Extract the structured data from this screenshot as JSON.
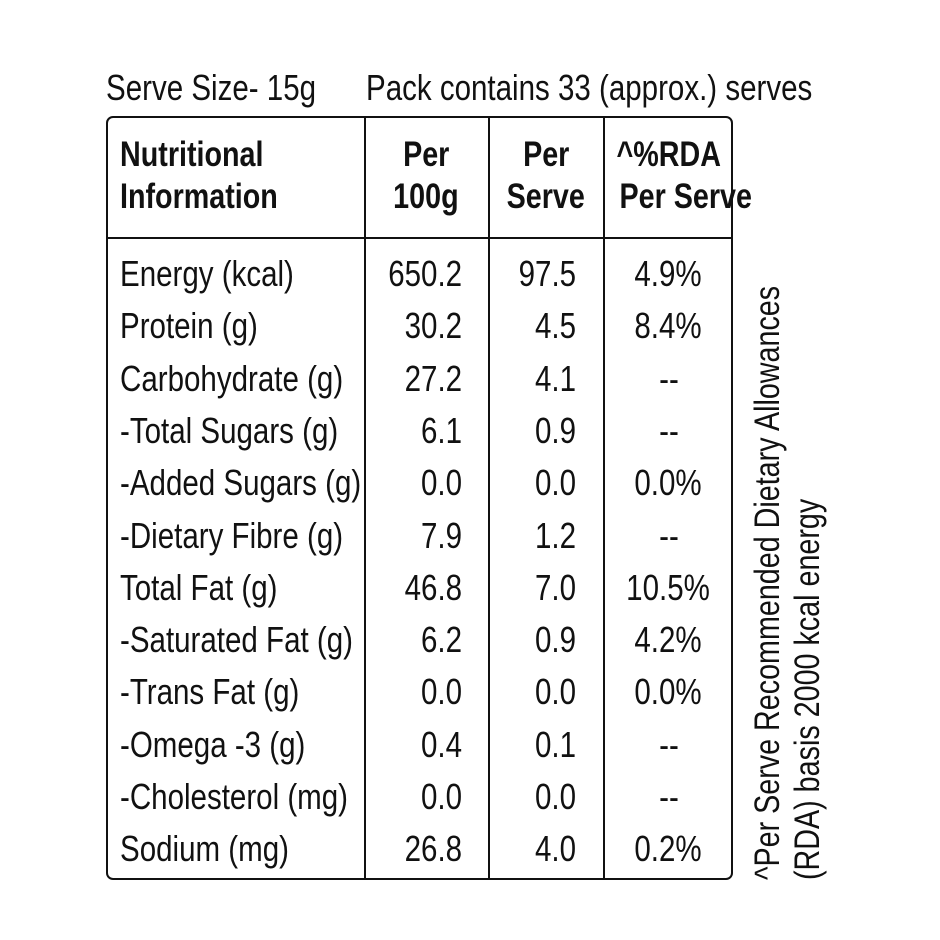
{
  "header": {
    "serve_size": "Serve Size- 15g",
    "pack_contains": "Pack contains 33 (approx.) serves"
  },
  "table": {
    "columns": {
      "name_line1": "Nutritional",
      "name_line2": "Information",
      "per100_line1": "Per",
      "per100_line2": "100g",
      "perserve_line1": "Per",
      "perserve_line2": "Serve",
      "rda_line1": "^%RDA",
      "rda_line2": "Per Serve"
    },
    "rows": [
      {
        "name": "Energy (kcal)",
        "per_100g": "650.2",
        "per_serve": "97.5",
        "rda": "4.9%"
      },
      {
        "name": "Protein (g)",
        "per_100g": "30.2",
        "per_serve": "4.5",
        "rda": "8.4%"
      },
      {
        "name": "Carbohydrate (g)",
        "per_100g": "27.2",
        "per_serve": "4.1",
        "rda": "--"
      },
      {
        "name": "-Total Sugars (g)",
        "per_100g": "6.1",
        "per_serve": "0.9",
        "rda": "--"
      },
      {
        "name": "-Added Sugars (g)",
        "per_100g": "0.0",
        "per_serve": "0.0",
        "rda": "0.0%"
      },
      {
        "name": "-Dietary Fibre (g)",
        "per_100g": "7.9",
        "per_serve": "1.2",
        "rda": "--"
      },
      {
        "name": "Total Fat (g)",
        "per_100g": "46.8",
        "per_serve": "7.0",
        "rda": "10.5%"
      },
      {
        "name": "-Saturated Fat (g)",
        "per_100g": "6.2",
        "per_serve": "0.9",
        "rda": "4.2%"
      },
      {
        "name": "-Trans Fat (g)",
        "per_100g": "0.0",
        "per_serve": "0.0",
        "rda": "0.0%"
      },
      {
        "name": "-Omega -3 (g)",
        "per_100g": "0.4",
        "per_serve": "0.1",
        "rda": "--"
      },
      {
        "name": "-Cholesterol (mg)",
        "per_100g": "0.0",
        "per_serve": "0.0",
        "rda": "--"
      },
      {
        "name": "Sodium (mg)",
        "per_100g": "26.8",
        "per_serve": "4.0",
        "rda": "0.2%"
      }
    ]
  },
  "footnote": {
    "line1": "^Per Serve Recommended Dietary Allowances",
    "line2": "(RDA) basis 2000 kcal energy"
  }
}
